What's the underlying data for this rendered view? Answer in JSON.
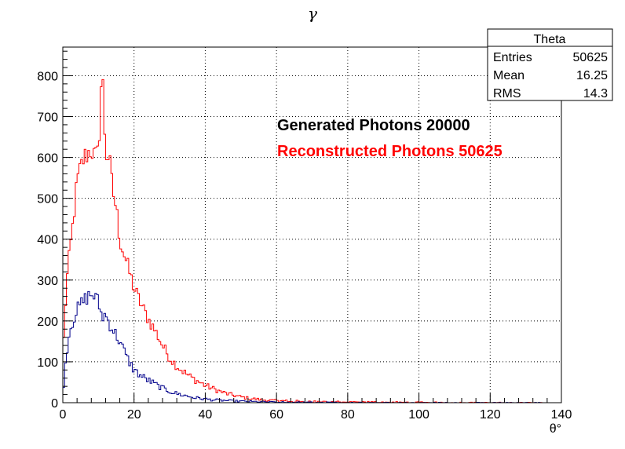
{
  "chart_data": {
    "type": "histogram",
    "title": "γ",
    "xlabel": "θ°",
    "ylabel": "",
    "xlim": [
      0,
      140
    ],
    "ylim": [
      0,
      870
    ],
    "x_ticks": [
      0,
      20,
      40,
      60,
      80,
      100,
      120,
      140
    ],
    "y_ticks": [
      0,
      100,
      200,
      300,
      400,
      500,
      600,
      700,
      800
    ],
    "grid": true,
    "bin_width": 0.5,
    "stats_box": {
      "title": "Theta",
      "rows": [
        {
          "label": "Entries",
          "value": "50625"
        },
        {
          "label": "Mean",
          "value": "16.25"
        },
        {
          "label": "RMS",
          "value": "14.3"
        }
      ]
    },
    "annotations": [
      {
        "text": "Generated Photons 20000",
        "color": "#000000"
      },
      {
        "text": "Reconstructed Photons 50625",
        "color": "#ff0000"
      }
    ],
    "series": [
      {
        "color": "#ff0000",
        "x": [
          0,
          1,
          2,
          3,
          4,
          5,
          6,
          7,
          8,
          9,
          10,
          11,
          12,
          13,
          14,
          15,
          16,
          17,
          18,
          19,
          20,
          22,
          24,
          26,
          28,
          30,
          32,
          34,
          36,
          38,
          40,
          42,
          44,
          46,
          48,
          50,
          52,
          54,
          56,
          58,
          60,
          65,
          70,
          75,
          80,
          85,
          90,
          95,
          100,
          105,
          110,
          115,
          120,
          125,
          130,
          135
        ],
        "y": [
          110,
          290,
          370,
          450,
          540,
          575,
          600,
          610,
          620,
          600,
          610,
          830,
          610,
          600,
          520,
          475,
          400,
          370,
          340,
          310,
          280,
          240,
          205,
          175,
          140,
          110,
          90,
          75,
          62,
          52,
          42,
          35,
          28,
          22,
          18,
          14,
          11,
          9,
          7,
          6,
          5,
          4,
          3,
          2.5,
          2,
          1.8,
          1.5,
          1.2,
          1,
          0.8,
          0.6,
          0.5,
          0.4,
          0.3,
          0.2,
          0
        ]
      },
      {
        "color": "#00008b",
        "x": [
          0,
          1,
          2,
          3,
          4,
          5,
          6,
          7,
          8,
          9,
          10,
          11,
          12,
          13,
          14,
          15,
          16,
          17,
          18,
          19,
          20,
          22,
          24,
          26,
          28,
          30,
          32,
          34,
          36,
          38,
          40,
          42,
          44,
          46,
          48,
          50,
          52,
          54,
          56,
          58,
          60,
          65,
          70,
          75,
          80,
          85,
          90,
          95,
          100,
          105,
          110,
          115,
          120,
          125,
          130,
          135
        ],
        "y": [
          20,
          120,
          180,
          205,
          225,
          240,
          250,
          260,
          265,
          260,
          245,
          210,
          215,
          195,
          180,
          165,
          150,
          130,
          110,
          95,
          80,
          65,
          55,
          45,
          35,
          28,
          22,
          18,
          14,
          11,
          9,
          7,
          6,
          5,
          4,
          3.5,
          3,
          2.5,
          2,
          1.8,
          1.5,
          1.2,
          1,
          0.8,
          0.6,
          0.5,
          0.4,
          0.3,
          0.2,
          0.2,
          0.1,
          0.1,
          0.1,
          0,
          0,
          0
        ]
      }
    ]
  }
}
